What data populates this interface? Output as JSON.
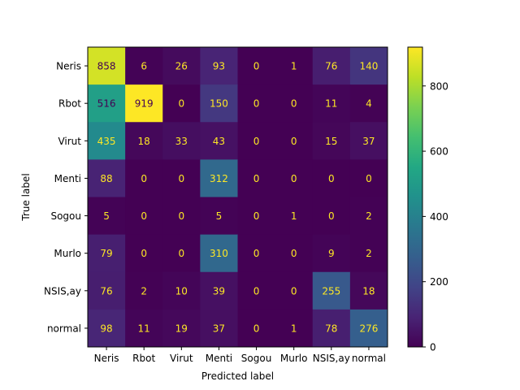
{
  "chart_data": {
    "type": "heatmap",
    "title": "",
    "xlabel": "Predicted label",
    "ylabel": "True label",
    "categories": [
      "Neris",
      "Rbot",
      "Virut",
      "Menti",
      "Sogou",
      "Murlo",
      "NSIS,ay",
      "normal"
    ],
    "matrix": [
      [
        858,
        6,
        26,
        93,
        0,
        1,
        76,
        140
      ],
      [
        516,
        919,
        0,
        150,
        0,
        0,
        11,
        4
      ],
      [
        435,
        18,
        33,
        43,
        0,
        0,
        15,
        37
      ],
      [
        88,
        0,
        0,
        312,
        0,
        0,
        0,
        0
      ],
      [
        5,
        0,
        0,
        5,
        0,
        1,
        0,
        2
      ],
      [
        79,
        0,
        0,
        310,
        0,
        0,
        9,
        2
      ],
      [
        76,
        2,
        10,
        39,
        0,
        0,
        255,
        18
      ],
      [
        98,
        11,
        19,
        37,
        0,
        1,
        78,
        276
      ]
    ],
    "colormap": "viridis",
    "vmin": 0,
    "vmax": 919,
    "colorbar_ticks": [
      0,
      200,
      400,
      600,
      800
    ],
    "grid": false
  }
}
